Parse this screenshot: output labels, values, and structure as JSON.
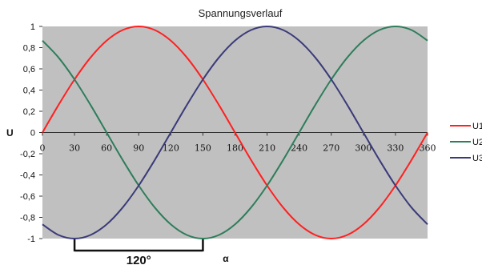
{
  "chart_data": {
    "type": "line",
    "title": "Spannungsverlauf",
    "xlabel": "α",
    "ylabel": "U",
    "xlim": [
      0,
      360
    ],
    "ylim": [
      -1,
      1
    ],
    "x_ticks": [
      "0",
      "30",
      "60",
      "90",
      "120",
      "150",
      "180",
      "210",
      "240",
      "270",
      "300",
      "330",
      "360"
    ],
    "y_ticks": [
      "1",
      "0,8",
      "0,6",
      "0,4",
      "0,2",
      "0",
      "-0,2",
      "-0,4",
      "-0,6",
      "-0,8",
      "-1"
    ],
    "grid": false,
    "legend_position": "right",
    "x": [
      0,
      15,
      30,
      45,
      60,
      75,
      90,
      105,
      120,
      135,
      150,
      165,
      180,
      195,
      210,
      225,
      240,
      255,
      270,
      285,
      300,
      315,
      330,
      345,
      360
    ],
    "series": [
      {
        "name": "U1",
        "color": "#ff2020",
        "values": [
          0,
          0.259,
          0.5,
          0.707,
          0.866,
          0.966,
          1,
          0.966,
          0.866,
          0.707,
          0.5,
          0.259,
          0,
          -0.259,
          -0.5,
          -0.707,
          -0.866,
          -0.966,
          -1,
          -0.966,
          -0.866,
          -0.707,
          -0.5,
          -0.259,
          0
        ]
      },
      {
        "name": "U2",
        "color": "#2e7d5b",
        "values": [
          0.866,
          0.707,
          0.5,
          0.259,
          0,
          -0.259,
          -0.5,
          -0.707,
          -0.866,
          -0.966,
          -1,
          -0.966,
          -0.866,
          -0.707,
          -0.5,
          -0.259,
          0,
          0.259,
          0.5,
          0.707,
          0.866,
          0.966,
          1,
          0.966,
          0.866
        ]
      },
      {
        "name": "U3",
        "color": "#3a3a7a",
        "values": [
          -0.866,
          -0.966,
          -1,
          -0.966,
          -0.866,
          -0.707,
          -0.5,
          -0.259,
          0,
          0.259,
          0.5,
          0.707,
          0.866,
          0.966,
          1,
          0.966,
          0.866,
          0.707,
          0.5,
          0.259,
          0,
          -0.259,
          -0.5,
          -0.707,
          -0.866
        ]
      }
    ],
    "annotation": {
      "text": "120°",
      "from_x": 30,
      "to_x": 150
    },
    "plot_background": "#c0c0c0"
  }
}
